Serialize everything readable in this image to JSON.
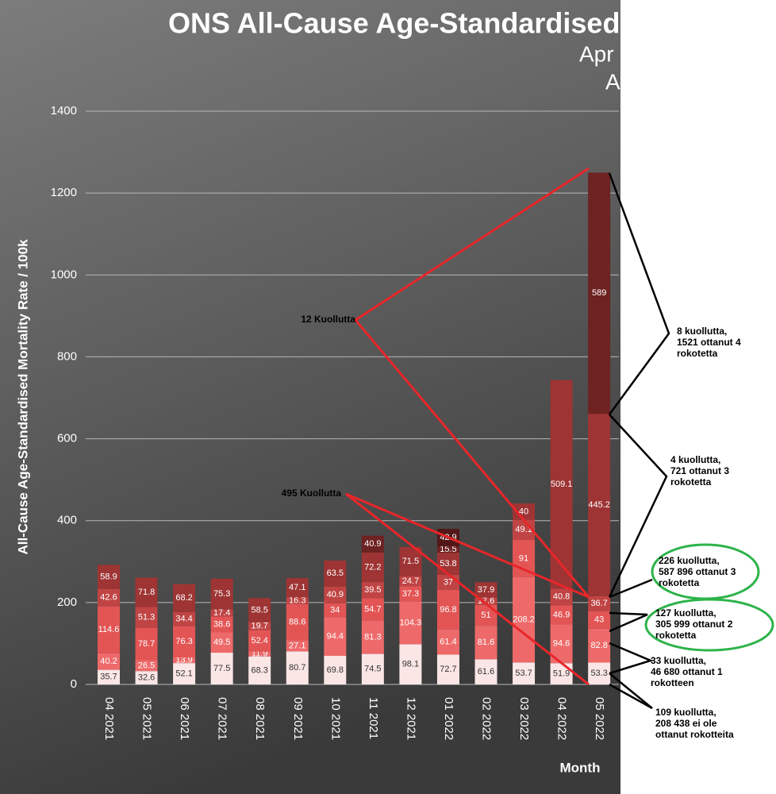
{
  "chart_data": {
    "type": "stacked-bar",
    "title": "ONS All-Cause Age-Standardised",
    "subtitle_lines": [
      "Apr",
      "A"
    ],
    "y_label": "All-Cause Age-Standardised Mortality Rate / 100k",
    "x_label": "Month",
    "categories": [
      "04 2021",
      "05 2021",
      "06 2021",
      "07 2021",
      "08 2021",
      "09 2021",
      "10 2021",
      "11 2021",
      "12 2021",
      "01 2022",
      "02 2022",
      "03 2022",
      "04 2022",
      "05 2022"
    ],
    "series": [
      {
        "color": "#fbe6e6",
        "values": [
          35.7,
          32.6,
          52.1,
          77.5,
          68.3,
          80.7,
          69.8,
          74.5,
          98.1,
          72.7,
          61.6,
          53.7,
          51.9,
          53.3
        ]
      },
      {
        "color": "#ee6a6a",
        "values": [
          40.2,
          26.5,
          13.9,
          49.5,
          11.9,
          27.1,
          94.4,
          81.3,
          104.3,
          61.4,
          81.6,
          208.2,
          94.6,
          82.8
        ]
      },
      {
        "color": "#e35555",
        "values": [
          114.6,
          78.7,
          76.3,
          38.6,
          52.4,
          88.6,
          34,
          54.7,
          37.3,
          96.8,
          51,
          91,
          46.9,
          43
        ]
      },
      {
        "color": "#c04444",
        "values": [
          42.6,
          51.3,
          34.4,
          17.4,
          19.7,
          16.3,
          40.9,
          39.5,
          24.7,
          37,
          17.6,
          49.1,
          40.8,
          36.7
        ]
      },
      {
        "color": "#9e3434",
        "values": [
          58.9,
          71.8,
          68.2,
          75.3,
          58.5,
          47.1,
          63.5,
          72.2,
          71.5,
          53.8,
          37.9,
          40,
          509.1,
          445.2
        ]
      },
      {
        "color": "#6e2222",
        "values": [
          null,
          null,
          null,
          null,
          null,
          null,
          null,
          40.9,
          null,
          15.5,
          null,
          null,
          null,
          589
        ]
      },
      {
        "color": "#521818",
        "values": [
          null,
          null,
          null,
          null,
          null,
          null,
          null,
          null,
          null,
          42.9,
          null,
          null,
          null,
          null
        ]
      }
    ],
    "ylim": [
      0,
      1400
    ],
    "yticks": [
      0,
      200,
      400,
      600,
      800,
      1000,
      1200,
      1400
    ],
    "grid": true,
    "annotations": [
      {
        "text_lines": [
          "12 Kuollutta"
        ]
      },
      {
        "text_lines": [
          "495 Kuollutta"
        ]
      },
      {
        "text_lines": [
          "8 kuollutta,",
          "1521 ottanut 4",
          "rokotetta"
        ]
      },
      {
        "text_lines": [
          "4 kuollutta,",
          "721 ottanut 3",
          "rokotetta"
        ]
      },
      {
        "text_lines": [
          "226 kuollutta,",
          "587 896 ottanut 3",
          "rokotetta"
        ]
      },
      {
        "text_lines": [
          "127 kuollutta,",
          "305 999 ottanut 2",
          "rokotetta"
        ]
      },
      {
        "text_lines": [
          "33 kuollutta,",
          "46 680 ottanut 1",
          "rokotteen"
        ]
      },
      {
        "text_lines": [
          "109 kuollutta,",
          "208 438 ei ole",
          "ottanut rokotteita"
        ]
      }
    ]
  }
}
